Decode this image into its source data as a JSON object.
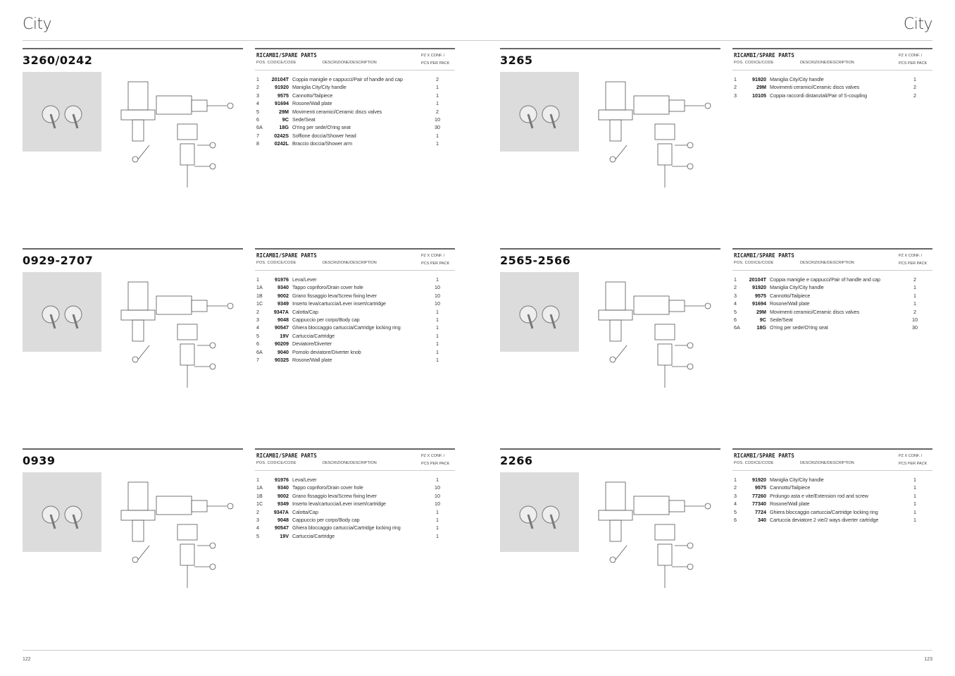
{
  "header": {
    "left_title": "City",
    "right_title": "City"
  },
  "footer": {
    "left_page": "122",
    "right_page": "123"
  },
  "table_header": {
    "title": "RICAMBI/SPARE PARTS",
    "pos_code": "Pos. Codice/Code",
    "description": "Descrizione/Description",
    "qty1": "Pz x conf. /",
    "qty2": "Pcs per pack"
  },
  "products": [
    {
      "code": "3260/0242",
      "parts": [
        [
          "1",
          "20104T",
          "Coppia maniglie e cappucci/Pair of handle and cap",
          "2"
        ],
        [
          "2",
          "91920",
          "Maniglia City/City handle",
          "1"
        ],
        [
          "3",
          "9575",
          "Cannotto/Tailpiece",
          "1"
        ],
        [
          "4",
          "91694",
          "Rosone/Wall plate",
          "1"
        ],
        [
          "5",
          "29M",
          "Movimenti ceramici/Ceramic discs valves",
          "2"
        ],
        [
          "6",
          "9C",
          "Sede/Seat",
          "10"
        ],
        [
          "6A",
          "18G",
          "O'ring per sede/O'ring seat",
          "30"
        ],
        [
          "7",
          "0242S",
          "Soffione doccia/Shower head",
          "1"
        ],
        [
          "8",
          "0242L",
          "Braccio doccia/Shower arm",
          "1"
        ]
      ]
    },
    {
      "code": "3265",
      "parts": [
        [
          "1",
          "91920",
          "Maniglia City/City handle",
          "1"
        ],
        [
          "2",
          "29M",
          "Movimenti ceramici/Ceramic discs valves",
          "2"
        ],
        [
          "3",
          "10105",
          "Coppia raccordi distanziali/Pair of S-coupling",
          "2"
        ]
      ]
    },
    {
      "code": "0929-2707",
      "parts": [
        [
          "1",
          "91976",
          "Leva/Lever",
          "1"
        ],
        [
          "1A",
          "9340",
          "Tappo copriforo/Drain cover hole",
          "10"
        ],
        [
          "1B",
          "9002",
          "Grano fissaggio leva/Screw fixing lever",
          "10"
        ],
        [
          "1C",
          "9349",
          "Inserto leva/cartuccia/Lever insert/cartridge",
          "10"
        ],
        [
          "2",
          "9347A",
          "Calotta/Cap",
          "1"
        ],
        [
          "3",
          "9048",
          "Cappuccio per corpo/Body cap",
          "1"
        ],
        [
          "4",
          "90547",
          "Ghiera bloccaggio cartuccia/Cartridge locking ring",
          "1"
        ],
        [
          "5",
          "19V",
          "Cartuccia/Cartridge",
          "1"
        ],
        [
          "6",
          "90209",
          "Deviatore/Diverter",
          "1"
        ],
        [
          "6A",
          "9040",
          "Pomolo deviatore/Diverter knob",
          "1"
        ],
        [
          "7",
          "90325",
          "Rosone/Wall plate",
          "1"
        ]
      ]
    },
    {
      "code": "2565-2566",
      "parts": [
        [
          "1",
          "20104T",
          "Coppia maniglie e cappucci/Pair of handle and cap",
          "2"
        ],
        [
          "2",
          "91920",
          "Maniglia City/City handle",
          "1"
        ],
        [
          "3",
          "9575",
          "Cannotto/Tailpiece",
          "1"
        ],
        [
          "4",
          "91694",
          "Rosone/Wall plate",
          "1"
        ],
        [
          "5",
          "29M",
          "Movimenti ceramici/Ceramic discs valves",
          "2"
        ],
        [
          "6",
          "9C",
          "Sede/Seat",
          "10"
        ],
        [
          "6A",
          "18G",
          "O'ring per sede/O'ring seat",
          "30"
        ]
      ]
    },
    {
      "code": "0939",
      "parts": [
        [
          "1",
          "91976",
          "Leva/Lever",
          "1"
        ],
        [
          "1A",
          "9340",
          "Tappo copriforo/Drain cover hole",
          "10"
        ],
        [
          "1B",
          "9002",
          "Grano fissaggio leva/Screw fixing lever",
          "10"
        ],
        [
          "1C",
          "9349",
          "Inserto leva/cartuccia/Lever insert/cartridge",
          "10"
        ],
        [
          "2",
          "9347A",
          "Calotta/Cap",
          "1"
        ],
        [
          "3",
          "9048",
          "Cappuccio per corpo/Body cap",
          "1"
        ],
        [
          "4",
          "90547",
          "Ghiera bloccaggio cartuccia/Cartridge locking ring",
          "1"
        ],
        [
          "5",
          "19V",
          "Cartuccia/Cartridge",
          "1"
        ]
      ]
    },
    {
      "code": "2266",
      "parts": [
        [
          "1",
          "91920",
          "Maniglia City/City handle",
          "1"
        ],
        [
          "2",
          "9575",
          "Cannotto/Tailpiece",
          "1"
        ],
        [
          "3",
          "77260",
          "Prolungo asta e vite/Extension rod and screw",
          "1"
        ],
        [
          "4",
          "77340",
          "Rosone/Wall plate",
          "1"
        ],
        [
          "5",
          "7724",
          "Ghiera bloccaggio cartuccia/Cartridge locking ring",
          "1"
        ],
        [
          "6",
          "340",
          "Cartuccia deviatore 2 vie/2 ways diverter cartridge",
          "1"
        ]
      ]
    }
  ]
}
